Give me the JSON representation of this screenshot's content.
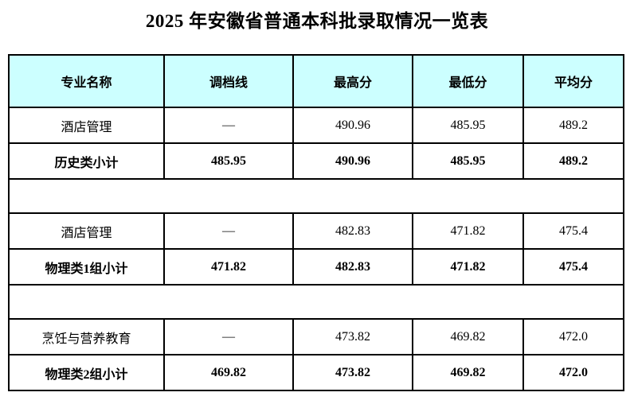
{
  "title": "2025 年安徽省普通本科批录取情况一览表",
  "colors": {
    "header_bg": "#ccffff",
    "border": "#000000",
    "text": "#000000",
    "page_bg": "#ffffff"
  },
  "table": {
    "columns": [
      "专业名称",
      "调档线",
      "最高分",
      "最低分",
      "平均分"
    ],
    "rows": [
      {
        "type": "data",
        "emphasis": false,
        "cells": [
          "酒店管理",
          "—",
          "490.96",
          "485.95",
          "489.2"
        ]
      },
      {
        "type": "data",
        "emphasis": true,
        "cells": [
          "历史类小计",
          "485.95",
          "490.96",
          "485.95",
          "489.2"
        ]
      },
      {
        "type": "spacer",
        "emphasis": false,
        "cells": [
          "",
          "",
          "",
          "",
          ""
        ]
      },
      {
        "type": "data",
        "emphasis": false,
        "cells": [
          "酒店管理",
          "—",
          "482.83",
          "471.82",
          "475.4"
        ]
      },
      {
        "type": "data",
        "emphasis": true,
        "cells": [
          "物理类1组小计",
          "471.82",
          "482.83",
          "471.82",
          "475.4"
        ]
      },
      {
        "type": "spacer",
        "emphasis": false,
        "cells": [
          "",
          "",
          "",
          "",
          ""
        ]
      },
      {
        "type": "data",
        "emphasis": false,
        "cells": [
          "烹饪与营养教育",
          "—",
          "473.82",
          "469.82",
          "472.0"
        ]
      },
      {
        "type": "data",
        "emphasis": true,
        "cells": [
          "物理类2组小计",
          "469.82",
          "473.82",
          "469.82",
          "472.0"
        ]
      }
    ]
  }
}
